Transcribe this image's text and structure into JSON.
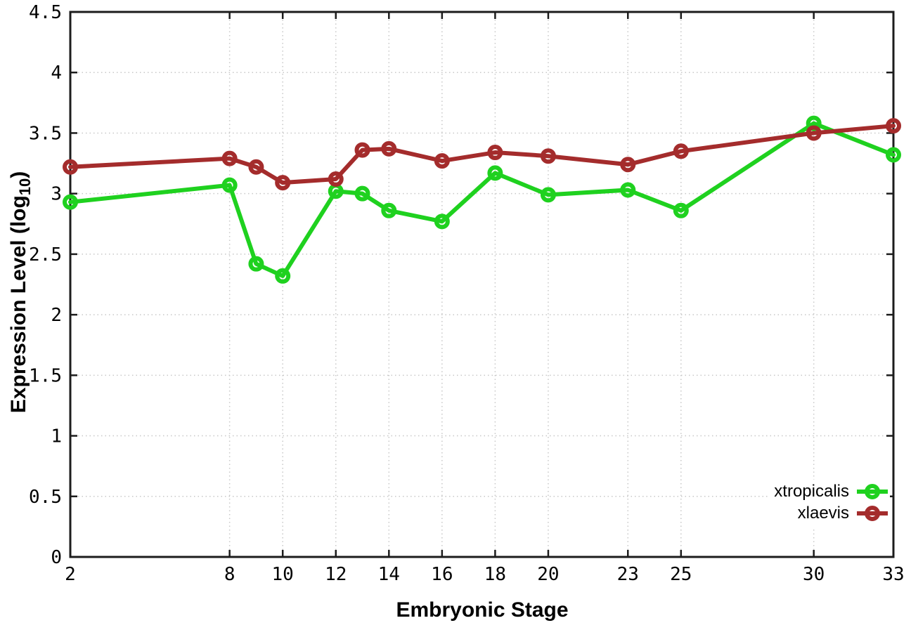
{
  "chart_data": {
    "type": "line",
    "title": "",
    "xlabel": "Embryonic Stage",
    "ylabel": "Expression Level (log10)",
    "ylabel_parts": {
      "main": "Expression Level (log",
      "sub": "10",
      "end": ")"
    },
    "xlim": [
      2,
      33
    ],
    "ylim": [
      0,
      4.5
    ],
    "x_ticks": [
      2,
      8,
      10,
      12,
      14,
      16,
      18,
      20,
      23,
      25,
      30,
      33
    ],
    "y_ticks": [
      0,
      0.5,
      1,
      1.5,
      2,
      2.5,
      3,
      3.5,
      4,
      4.5
    ],
    "grid": true,
    "legend_position": "inside-bottom-right",
    "x": [
      2,
      8,
      9,
      10,
      12,
      13,
      14,
      16,
      18,
      20,
      23,
      25,
      30,
      33
    ],
    "series": [
      {
        "name": "xtropicalis",
        "color": "#1fd11f",
        "values": [
          2.93,
          3.07,
          2.42,
          2.32,
          3.02,
          3.0,
          2.86,
          2.77,
          3.17,
          2.99,
          3.03,
          2.86,
          3.58,
          3.32
        ]
      },
      {
        "name": "xlaevis",
        "color": "#a42c2c",
        "values": [
          3.22,
          3.29,
          3.22,
          3.09,
          3.12,
          3.36,
          3.37,
          3.27,
          3.34,
          3.31,
          3.24,
          3.35,
          3.5,
          3.56
        ]
      }
    ],
    "style": {
      "grid_color": "#c8c8c8",
      "axis_color": "#1c1c1c",
      "text_color": "#000000",
      "line_width": 6,
      "marker_radius": 8,
      "marker_stroke_width": 6,
      "tick_length": 10
    }
  }
}
